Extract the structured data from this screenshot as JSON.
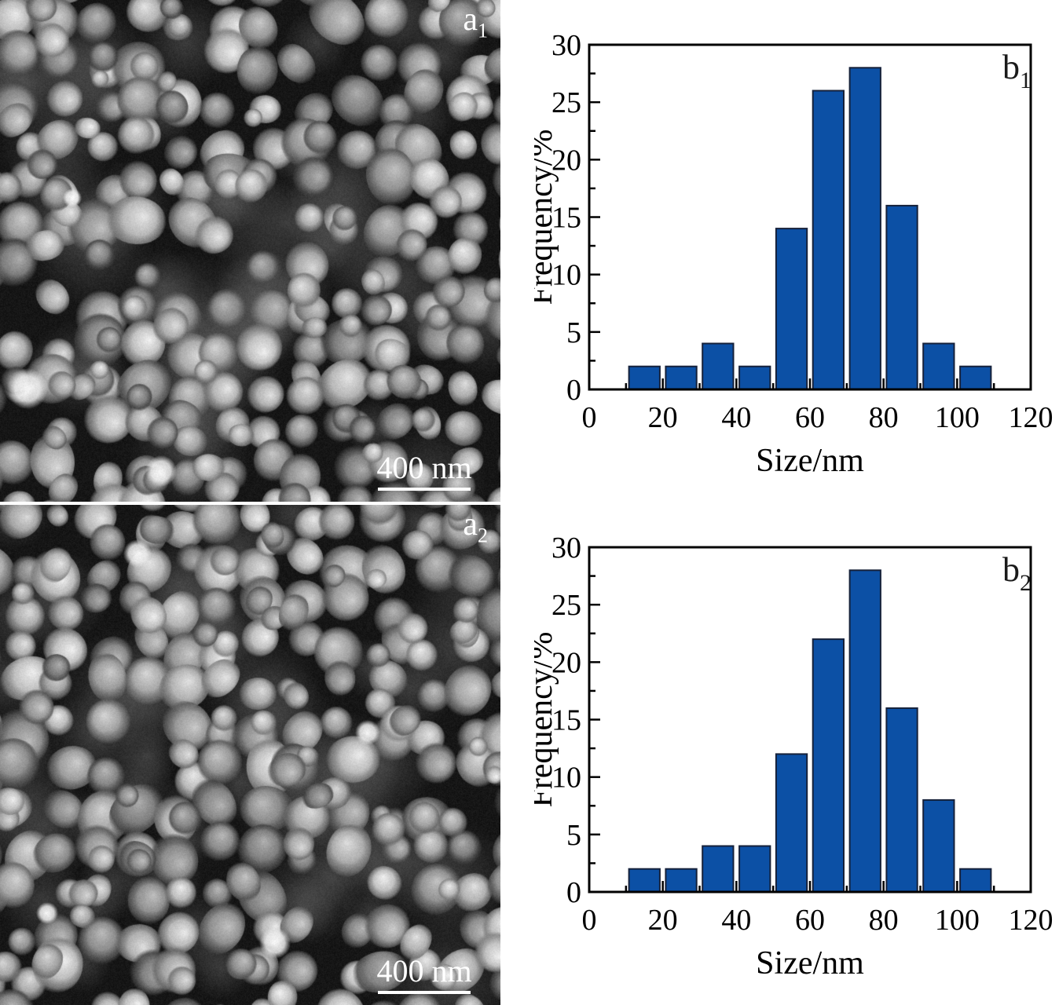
{
  "panels": {
    "a1": {
      "label": "a",
      "sub": "1",
      "scale_bar": "400 nm"
    },
    "a2": {
      "label": "a",
      "sub": "2",
      "scale_bar": "400 nm"
    }
  },
  "chart_data": [
    {
      "type": "bar",
      "panel_label": "b",
      "panel_sub": "1",
      "title": "",
      "xlabel": "Size/nm",
      "ylabel": "Frequency/%",
      "xlim": [
        0,
        120
      ],
      "ylim": [
        0,
        30
      ],
      "x_major_ticks": [
        0,
        20,
        40,
        60,
        80,
        100,
        120
      ],
      "x_minor_step": 10,
      "y_major_ticks": [
        0,
        5,
        10,
        15,
        20,
        25,
        30
      ],
      "y_minor_step": 2.5,
      "grid": false,
      "legend": "none",
      "bin_width": 10,
      "bin_starts": [
        10,
        20,
        30,
        40,
        50,
        60,
        70,
        80,
        90,
        100
      ],
      "values": [
        2,
        2,
        4,
        2,
        14,
        26,
        28,
        16,
        4,
        2
      ],
      "bar_color": "#0c50a5",
      "bar_edge_color": "#16213a",
      "axis_color": "#000000"
    },
    {
      "type": "bar",
      "panel_label": "b",
      "panel_sub": "2",
      "title": "",
      "xlabel": "Size/nm",
      "ylabel": "Frequency/%",
      "xlim": [
        0,
        120
      ],
      "ylim": [
        0,
        30
      ],
      "x_major_ticks": [
        0,
        20,
        40,
        60,
        80,
        100,
        120
      ],
      "x_minor_step": 10,
      "y_major_ticks": [
        0,
        5,
        10,
        15,
        20,
        25,
        30
      ],
      "y_minor_step": 2.5,
      "grid": false,
      "legend": "none",
      "bin_width": 10,
      "bin_starts": [
        10,
        20,
        30,
        40,
        50,
        60,
        70,
        80,
        90,
        100
      ],
      "values": [
        2,
        2,
        4,
        4,
        12,
        22,
        28,
        16,
        8,
        2
      ],
      "bar_color": "#0c50a5",
      "bar_edge_color": "#16213a",
      "axis_color": "#000000"
    }
  ]
}
